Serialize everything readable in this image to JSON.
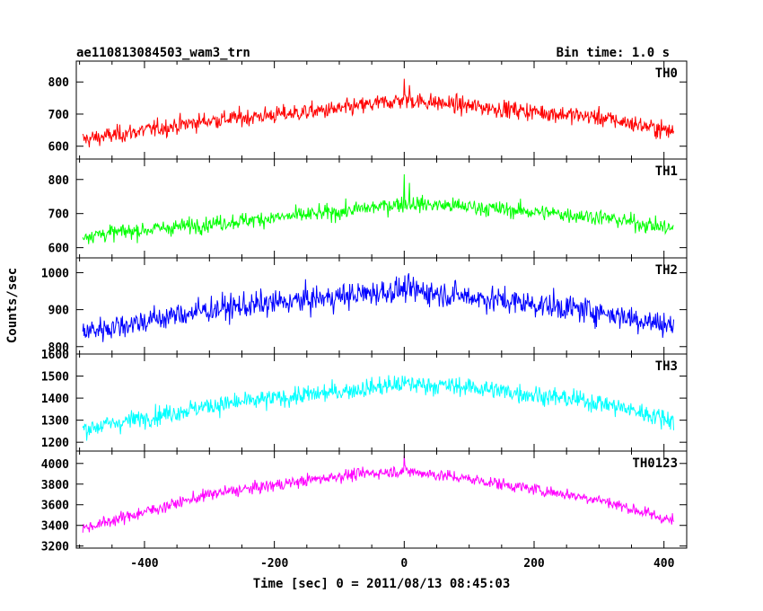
{
  "title_left": "ae110813084503_wam3_trn",
  "title_right": "Bin time: 1.0 s",
  "chart_data": {
    "type": "line",
    "title": "ae110813084503_wam3_trn",
    "subtitle": "Bin time: 1.0 s",
    "xlabel": "Time [sec] 0 = 2011/08/13 08:45:03",
    "ylabel": "Counts/sec",
    "xlim": [
      -505,
      435
    ],
    "x_ticks": [
      -400,
      -200,
      0,
      200,
      400
    ],
    "x_range": [
      -495,
      415
    ],
    "grid": false,
    "panels": [
      {
        "name": "TH0",
        "color": "#ff0000",
        "ylim": [
          560,
          865
        ],
        "yticks": [
          600,
          700,
          800
        ],
        "trend": [
          [
            -495,
            620
          ],
          [
            -300,
            680
          ],
          [
            -100,
            715
          ],
          [
            0,
            745
          ],
          [
            100,
            725
          ],
          [
            300,
            690
          ],
          [
            415,
            645
          ]
        ],
        "noise": 35,
        "spike": [
          [
            0,
            810
          ],
          [
            8,
            790
          ]
        ]
      },
      {
        "name": "TH1",
        "color": "#00ff00",
        "ylim": [
          570,
          860
        ],
        "yticks": [
          600,
          700,
          800
        ],
        "trend": [
          [
            -495,
            635
          ],
          [
            -300,
            670
          ],
          [
            -100,
            705
          ],
          [
            0,
            730
          ],
          [
            100,
            720
          ],
          [
            300,
            690
          ],
          [
            415,
            655
          ]
        ],
        "noise": 30,
        "spike": [
          [
            0,
            815
          ],
          [
            8,
            790
          ]
        ]
      },
      {
        "name": "TH2",
        "color": "#0000ff",
        "ylim": [
          780,
          1040
        ],
        "yticks": [
          800,
          900,
          1000
        ],
        "trend": [
          [
            -495,
            840
          ],
          [
            -300,
            900
          ],
          [
            -100,
            935
          ],
          [
            0,
            955
          ],
          [
            100,
            935
          ],
          [
            300,
            895
          ],
          [
            415,
            855
          ]
        ],
        "noise": 45,
        "spike": []
      },
      {
        "name": "TH3",
        "color": "#00ffff",
        "ylim": [
          1160,
          1600
        ],
        "yticks": [
          1200,
          1300,
          1400,
          1500,
          1600
        ],
        "trend": [
          [
            -495,
            1260
          ],
          [
            -300,
            1365
          ],
          [
            -100,
            1430
          ],
          [
            0,
            1465
          ],
          [
            100,
            1450
          ],
          [
            300,
            1380
          ],
          [
            415,
            1300
          ]
        ],
        "noise": 55,
        "spike": []
      },
      {
        "name": "TH0123",
        "color": "#ff00ff",
        "ylim": [
          3180,
          4120
        ],
        "yticks": [
          3200,
          3400,
          3600,
          3800,
          4000
        ],
        "trend": [
          [
            -495,
            3370
          ],
          [
            -300,
            3700
          ],
          [
            -100,
            3880
          ],
          [
            0,
            3930
          ],
          [
            100,
            3850
          ],
          [
            300,
            3650
          ],
          [
            415,
            3440
          ]
        ],
        "noise": 75,
        "spike": [
          [
            0,
            4080
          ]
        ]
      }
    ]
  }
}
